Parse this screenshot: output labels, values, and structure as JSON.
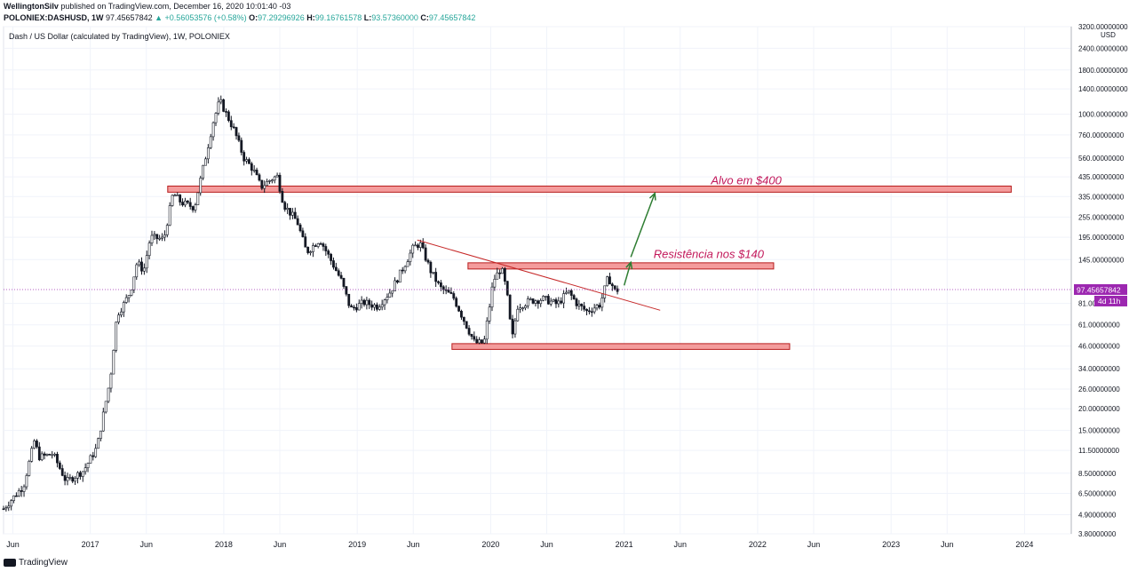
{
  "header": {
    "author": "WellingtonSilv",
    "published": "published on TradingView.com, December 16, 2020 10:01:40 -03",
    "symbol": "POLONIEX:DASHUSD, 1W",
    "last": "97.45657842",
    "change": "+0.56053576 (+0.58%)",
    "o_label": "O:",
    "o": "97.29296926",
    "h_label": "H:",
    "h": "99.16761578",
    "l_label": "L:",
    "l": "93.57360000",
    "c_label": "C:",
    "c": "97.45657842"
  },
  "footer": {
    "brand": "TradingView",
    "icon": "tradingview-logo-icon"
  },
  "colors": {
    "candle": "#131722",
    "zone_fill": "#f28b8b",
    "zone_stroke": "#b71c1c",
    "trendline": "#c62828",
    "arrow": "#2e7d32",
    "annotation": "#c2185b",
    "price_badge": "#9c27b0"
  },
  "chart_data": {
    "type": "candlestick",
    "title": "Dash / US Dollar (calculated by TradingView), 1W, POLONIEX",
    "scale": "log",
    "currency": "USD",
    "ylim": [
      3.8,
      3200
    ],
    "y_ticks": [
      {
        "value": 3200,
        "label": "3200.00000000"
      },
      {
        "value": 2400,
        "label": "2400.00000000"
      },
      {
        "value": 1800,
        "label": "1800.00000000"
      },
      {
        "value": 1400,
        "label": "1400.00000000"
      },
      {
        "value": 1000,
        "label": "1000.00000000"
      },
      {
        "value": 760,
        "label": "760.00000000"
      },
      {
        "value": 560,
        "label": "560.00000000"
      },
      {
        "value": 435,
        "label": "435.00000000"
      },
      {
        "value": 335,
        "label": "335.00000000"
      },
      {
        "value": 255,
        "label": "255.00000000"
      },
      {
        "value": 195,
        "label": "195.00000000"
      },
      {
        "value": 145,
        "label": "145.00000000"
      },
      {
        "value": 81,
        "label": "81.00000000"
      },
      {
        "value": 61,
        "label": "61.00000000"
      },
      {
        "value": 46,
        "label": "46.00000000"
      },
      {
        "value": 34,
        "label": "34.00000000"
      },
      {
        "value": 26,
        "label": "26.00000000"
      },
      {
        "value": 20,
        "label": "20.00000000"
      },
      {
        "value": 15,
        "label": "15.00000000"
      },
      {
        "value": 11.5,
        "label": "11.50000000"
      },
      {
        "value": 8.5,
        "label": "8.50000000"
      },
      {
        "value": 6.5,
        "label": "6.50000000"
      },
      {
        "value": 4.9,
        "label": "4.90000000"
      },
      {
        "value": 3.8,
        "label": "3.80000000"
      }
    ],
    "xlim": [
      2016.35,
      2024.35
    ],
    "x_ticks": [
      {
        "t": 2016.42,
        "label": "Jun"
      },
      {
        "t": 2017.0,
        "label": "2017"
      },
      {
        "t": 2017.42,
        "label": "Jun"
      },
      {
        "t": 2018.0,
        "label": "2018"
      },
      {
        "t": 2018.42,
        "label": "Jun"
      },
      {
        "t": 2019.0,
        "label": "2019"
      },
      {
        "t": 2019.42,
        "label": "Jun"
      },
      {
        "t": 2020.0,
        "label": "2020"
      },
      {
        "t": 2020.42,
        "label": "Jun"
      },
      {
        "t": 2021.0,
        "label": "2021"
      },
      {
        "t": 2021.42,
        "label": "Jun"
      },
      {
        "t": 2022.0,
        "label": "2022"
      },
      {
        "t": 2022.42,
        "label": "Jun"
      },
      {
        "t": 2023.0,
        "label": "2023"
      },
      {
        "t": 2023.42,
        "label": "Jun"
      },
      {
        "t": 2024.0,
        "label": "2024"
      }
    ],
    "price_path": [
      [
        2016.35,
        5.3
      ],
      [
        2016.5,
        7.2
      ],
      [
        2016.58,
        13.0
      ],
      [
        2016.62,
        10.5
      ],
      [
        2016.72,
        11.0
      ],
      [
        2016.82,
        7.6
      ],
      [
        2016.95,
        8.8
      ],
      [
        2017.05,
        12.0
      ],
      [
        2017.15,
        30.0
      ],
      [
        2017.2,
        70.0
      ],
      [
        2017.25,
        80.0
      ],
      [
        2017.3,
        95.0
      ],
      [
        2017.35,
        140.0
      ],
      [
        2017.4,
        125.0
      ],
      [
        2017.45,
        195.0
      ],
      [
        2017.55,
        190.0
      ],
      [
        2017.62,
        350.0
      ],
      [
        2017.68,
        310.0
      ],
      [
        2017.78,
        290.0
      ],
      [
        2017.86,
        550.0
      ],
      [
        2017.92,
        900.0
      ],
      [
        2017.97,
        1200.0
      ],
      [
        2018.02,
        1000.0
      ],
      [
        2018.08,
        800.0
      ],
      [
        2018.15,
        560.0
      ],
      [
        2018.22,
        480.0
      ],
      [
        2018.28,
        380.0
      ],
      [
        2018.35,
        420.0
      ],
      [
        2018.4,
        440.0
      ],
      [
        2018.45,
        300.0
      ],
      [
        2018.55,
        240.0
      ],
      [
        2018.62,
        160.0
      ],
      [
        2018.72,
        190.0
      ],
      [
        2018.8,
        145.0
      ],
      [
        2018.88,
        110.0
      ],
      [
        2018.95,
        75.0
      ],
      [
        2019.05,
        82.0
      ],
      [
        2019.15,
        78.0
      ],
      [
        2019.25,
        95.0
      ],
      [
        2019.32,
        120.0
      ],
      [
        2019.42,
        170.0
      ],
      [
        2019.47,
        180.0
      ],
      [
        2019.55,
        125.0
      ],
      [
        2019.62,
        100.0
      ],
      [
        2019.72,
        88.0
      ],
      [
        2019.82,
        60.0
      ],
      [
        2019.88,
        48.0
      ],
      [
        2019.95,
        48.0
      ],
      [
        2020.02,
        110.0
      ],
      [
        2020.08,
        130.0
      ],
      [
        2020.12,
        95.0
      ],
      [
        2020.16,
        50.0
      ],
      [
        2020.2,
        78.0
      ],
      [
        2020.3,
        84.0
      ],
      [
        2020.4,
        86.0
      ],
      [
        2020.5,
        80.0
      ],
      [
        2020.58,
        95.0
      ],
      [
        2020.65,
        80.0
      ],
      [
        2020.72,
        73.0
      ],
      [
        2020.82,
        80.0
      ],
      [
        2020.88,
        115.0
      ],
      [
        2020.93,
        96.0
      ],
      [
        2020.96,
        97.45
      ]
    ],
    "zones": [
      {
        "name": "zone-400",
        "t0": 2017.58,
        "t1": 2023.9,
        "low": 355,
        "high": 385
      },
      {
        "name": "zone-140",
        "t0": 2019.83,
        "t1": 2022.12,
        "low": 128,
        "high": 139
      },
      {
        "name": "zone-46",
        "t0": 2019.71,
        "t1": 2022.24,
        "low": 44,
        "high": 47.5
      }
    ],
    "trendline": {
      "t0": 2019.45,
      "p0": 188,
      "t1": 2021.27,
      "p1": 74
    },
    "arrows": [
      {
        "t0": 2021.0,
        "p0": 103,
        "t1": 2021.05,
        "p1": 140
      },
      {
        "t0": 2021.05,
        "p0": 150,
        "t1": 2021.23,
        "p1": 350
      }
    ],
    "annotations": [
      {
        "text": "Alvo em $400",
        "t": 2021.65,
        "p": 395
      },
      {
        "text": "Resistência nos $140",
        "t": 2021.22,
        "p": 148
      }
    ],
    "current_price": {
      "value": 97.45657842,
      "label": "97.45657842",
      "countdown": "4d 11h"
    }
  }
}
